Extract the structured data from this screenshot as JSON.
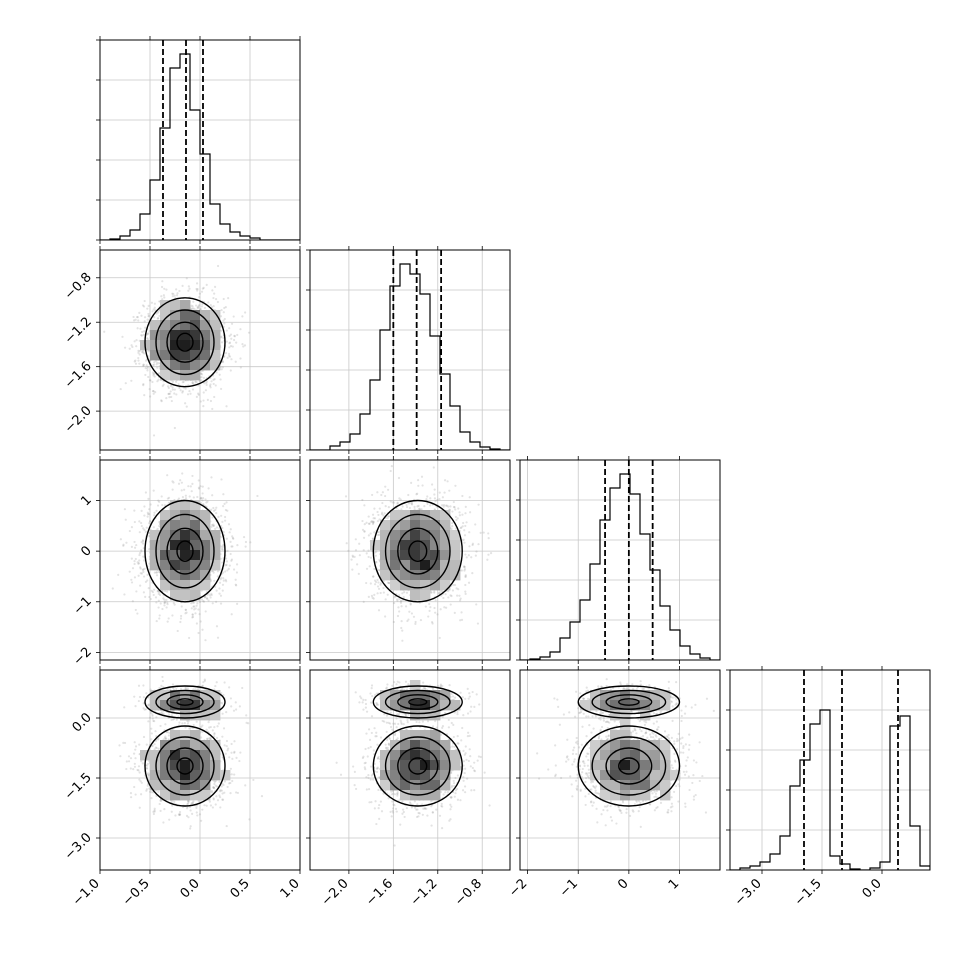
{
  "chart_data": {
    "type": "corner",
    "grid": true,
    "parameters": [
      {
        "ticks": [
          "−1.0",
          "−0.5",
          "0.0",
          "0.5",
          "1.0"
        ],
        "tick_values": [
          -1.0,
          -0.5,
          0.0,
          0.5,
          1.0
        ],
        "range": [
          -1.0,
          1.0
        ],
        "quantiles": [
          -0.37,
          -0.14,
          0.03
        ],
        "histogram": [
          0,
          0.005,
          0.02,
          0.05,
          0.13,
          0.3,
          0.56,
          0.86,
          0.93,
          0.65,
          0.43,
          0.18,
          0.08,
          0.04,
          0.02,
          0.01,
          0,
          0,
          0,
          0
        ],
        "dist": {
          "mean": -0.15,
          "sd": 0.2
        },
        "show_bottom_ticklabels": true,
        "show_left_ticklabels": false
      },
      {
        "ticks": [
          "−2.0",
          "−1.6",
          "−1.2",
          "−0.8"
        ],
        "tick_values": [
          -2.0,
          -1.6,
          -1.2,
          -0.8
        ],
        "range": [
          -2.35,
          -0.55
        ],
        "quantiles": [
          -1.6,
          -1.39,
          -1.17
        ],
        "histogram": [
          0,
          0,
          0.02,
          0.04,
          0.08,
          0.18,
          0.35,
          0.6,
          0.82,
          0.93,
          0.88,
          0.78,
          0.57,
          0.38,
          0.22,
          0.09,
          0.04,
          0.015,
          0.005,
          0
        ],
        "dist": {
          "mean": -1.38,
          "sd": 0.2
        },
        "show_bottom_ticklabels": true,
        "show_left_ticklabels": true
      },
      {
        "ticks": [
          "−2",
          "−1",
          "0",
          "1"
        ],
        "tick_values": [
          -2,
          -1,
          0,
          1
        ],
        "range": [
          -2.15,
          1.8
        ],
        "quantiles": [
          -0.47,
          0.0,
          0.47
        ],
        "histogram": [
          0,
          0.005,
          0.015,
          0.04,
          0.11,
          0.19,
          0.3,
          0.48,
          0.7,
          0.86,
          0.93,
          0.83,
          0.63,
          0.45,
          0.27,
          0.15,
          0.07,
          0.03,
          0.01,
          0
        ],
        "dist": {
          "mean": 0.0,
          "sd": 0.5
        },
        "show_bottom_ticklabels": true,
        "show_left_ticklabels": true
      },
      {
        "ticks": [
          "−3.0",
          "−1.5",
          "0.0"
        ],
        "tick_values": [
          -3.0,
          -1.5,
          0.0
        ],
        "range": [
          -3.8,
          1.2
        ],
        "quantiles": [
          -1.95,
          -1.0,
          0.4
        ],
        "histogram": [
          0,
          0.01,
          0.02,
          0.04,
          0.08,
          0.17,
          0.42,
          0.55,
          0.73,
          0.8,
          0.07,
          0.03,
          0.005,
          0,
          0.01,
          0.04,
          0.72,
          0.77,
          0.22,
          0.02
        ],
        "dist": {
          "mixture": [
            {
              "weight": 0.72,
              "mean": -1.2,
              "sd": 0.5
            },
            {
              "weight": 0.28,
              "mean": 0.4,
              "sd": 0.2
            }
          ]
        },
        "show_bottom_ticklabels": true,
        "show_left_ticklabels": true
      }
    ]
  }
}
